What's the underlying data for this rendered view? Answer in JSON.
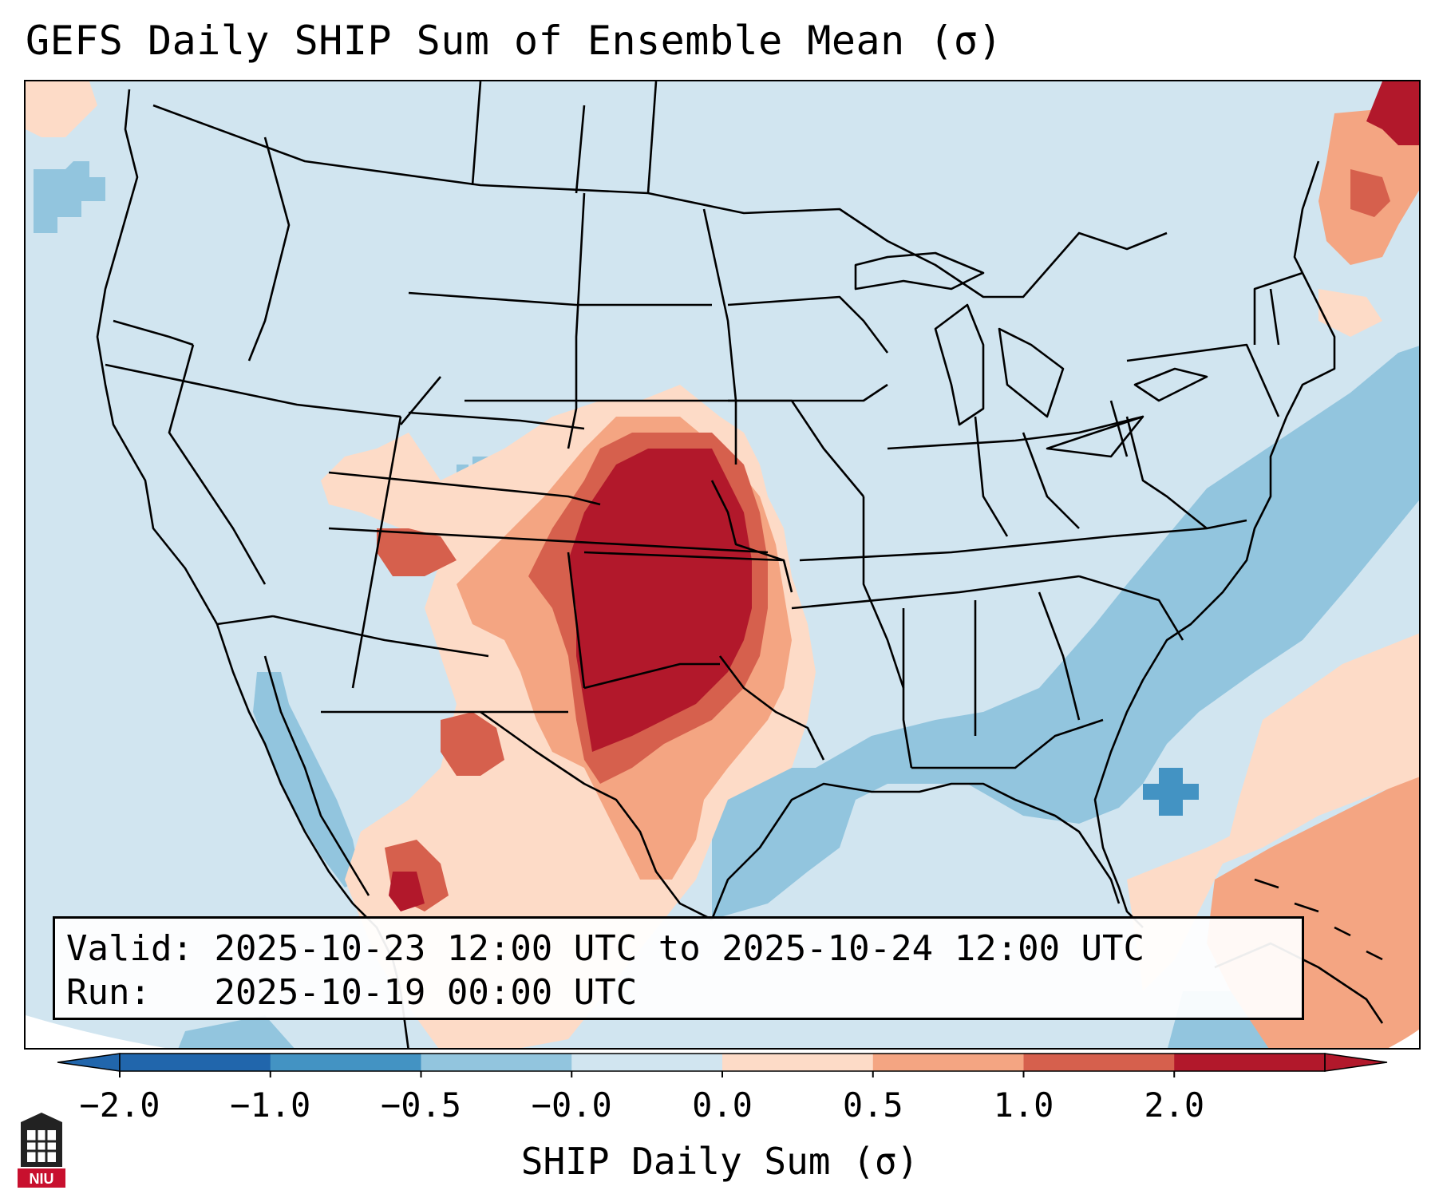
{
  "title": "GEFS Daily SHIP Sum of Ensemble Mean (σ)",
  "info": {
    "valid_label": "Valid:",
    "valid_value": "2025-10-23 12:00 UTC to 2025-10-24 12:00 UTC",
    "run_label": "Run:",
    "run_value": "2025-10-19 00:00 UTC"
  },
  "colorbar": {
    "label": "SHIP Daily Sum (σ)",
    "ticks": [
      "−2.0",
      "−1.0",
      "−0.5",
      "−0.0",
      "0.0",
      "0.5",
      "1.0",
      "2.0"
    ],
    "colors": [
      "#2166ac",
      "#4393c3",
      "#92c5de",
      "#d1e5f0",
      "#fddbc7",
      "#f4a582",
      "#d6604d",
      "#b2182b"
    ]
  },
  "map": {
    "region": "CONUS",
    "max_anomaly_area": "Oklahoma / Kansas / north Texas",
    "background_color": "#d1e5f0"
  },
  "logo": {
    "text": "NIU",
    "icon": "niu-logo-icon"
  }
}
